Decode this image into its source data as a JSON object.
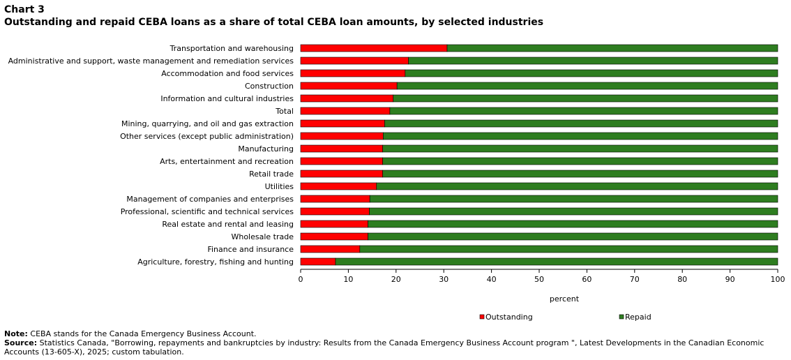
{
  "header": {
    "chart_label": "Chart 3",
    "title": "Outstanding and repaid CEBA loans as a share of total CEBA loan amounts, by selected industries"
  },
  "chart_data": {
    "type": "bar",
    "orientation": "horizontal",
    "stacked": true,
    "categories": [
      "Transportation and warehousing",
      "Administrative and support, waste management and remediation services",
      "Accommodation and food services",
      "Construction",
      "Information and cultural industries",
      "Total",
      "Mining, quarrying, and oil and gas extraction",
      "Other services (except public administration)",
      "Manufacturing",
      "Arts, entertainment and recreation",
      "Retail trade",
      "Utilities",
      "Management of companies and enterprises",
      "Professional, scientific and technical services",
      "Real estate and rental and leasing",
      "Wholesale trade",
      "Finance and insurance",
      "Agriculture, forestry, fishing and hunting"
    ],
    "series": [
      {
        "name": "Outstanding",
        "color": "#ff0000",
        "values": [
          30.7,
          22.6,
          21.9,
          20.2,
          19.4,
          18.7,
          17.6,
          17.3,
          17.2,
          17.2,
          17.2,
          15.9,
          14.5,
          14.4,
          14.1,
          14.1,
          12.4,
          7.3
        ]
      },
      {
        "name": "Repaid",
        "color": "#2e7d20",
        "values": [
          69.3,
          77.4,
          78.1,
          79.8,
          80.6,
          81.3,
          82.4,
          82.7,
          82.8,
          82.8,
          82.8,
          84.1,
          85.5,
          85.6,
          85.9,
          85.9,
          87.6,
          92.7
        ]
      }
    ],
    "xlabel": "percent",
    "xlim": [
      0,
      100
    ],
    "xticks": [
      "0",
      "10",
      "20",
      "30",
      "40",
      "50",
      "60",
      "70",
      "80",
      "90",
      "100"
    ],
    "grid": false,
    "legend": "bottom"
  },
  "footer": {
    "note_label": "Note:",
    "note_text": "CEBA stands for the Canada Emergency Business Account.",
    "source_label": "Source:",
    "source_text": "Statistics Canada, \"Borrowing, repayments and bankruptcies by industry: Results from the Canada Emergency Business Account program \", Latest Developments in the Canadian Economic Accounts (13-605-X), 2025; custom tabulation."
  }
}
